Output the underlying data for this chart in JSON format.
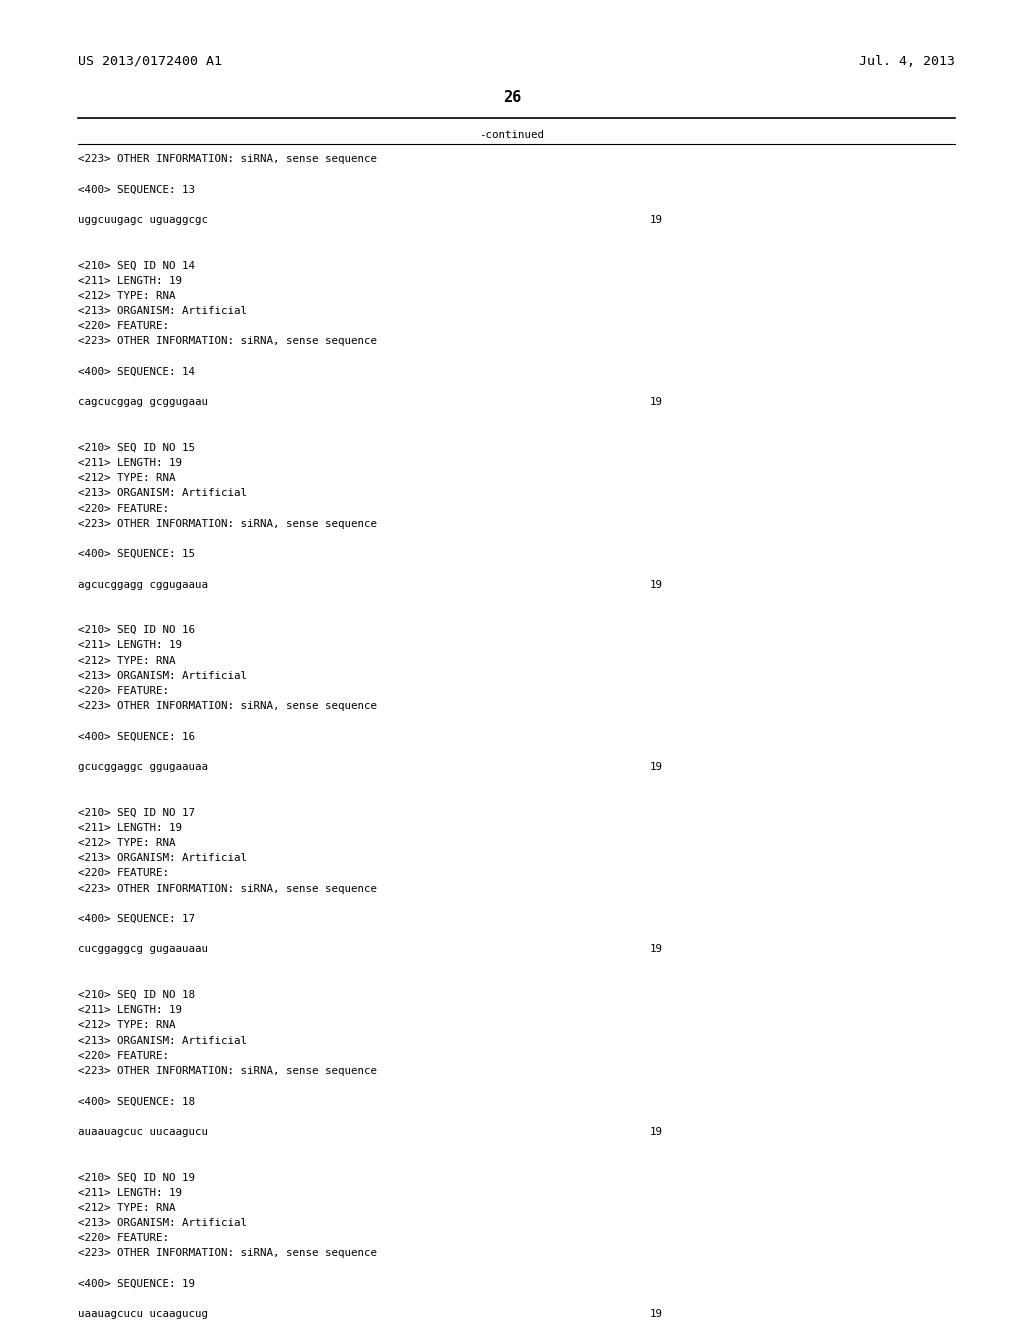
{
  "header_left": "US 2013/0172400 A1",
  "header_right": "Jul. 4, 2013",
  "page_number": "26",
  "continued_text": "-continued",
  "background_color": "#ffffff",
  "text_color": "#000000",
  "lines": [
    {
      "text": "<223> OTHER INFORMATION: siRNA, sense sequence",
      "num": null
    },
    {
      "text": "",
      "num": null
    },
    {
      "text": "<400> SEQUENCE: 13",
      "num": null
    },
    {
      "text": "",
      "num": null
    },
    {
      "text": "uggcuugagc uguaggcgc",
      "num": "19"
    },
    {
      "text": "",
      "num": null
    },
    {
      "text": "",
      "num": null
    },
    {
      "text": "<210> SEQ ID NO 14",
      "num": null
    },
    {
      "text": "<211> LENGTH: 19",
      "num": null
    },
    {
      "text": "<212> TYPE: RNA",
      "num": null
    },
    {
      "text": "<213> ORGANISM: Artificial",
      "num": null
    },
    {
      "text": "<220> FEATURE:",
      "num": null
    },
    {
      "text": "<223> OTHER INFORMATION: siRNA, sense sequence",
      "num": null
    },
    {
      "text": "",
      "num": null
    },
    {
      "text": "<400> SEQUENCE: 14",
      "num": null
    },
    {
      "text": "",
      "num": null
    },
    {
      "text": "cagcucggag gcggugaau",
      "num": "19"
    },
    {
      "text": "",
      "num": null
    },
    {
      "text": "",
      "num": null
    },
    {
      "text": "<210> SEQ ID NO 15",
      "num": null
    },
    {
      "text": "<211> LENGTH: 19",
      "num": null
    },
    {
      "text": "<212> TYPE: RNA",
      "num": null
    },
    {
      "text": "<213> ORGANISM: Artificial",
      "num": null
    },
    {
      "text": "<220> FEATURE:",
      "num": null
    },
    {
      "text": "<223> OTHER INFORMATION: siRNA, sense sequence",
      "num": null
    },
    {
      "text": "",
      "num": null
    },
    {
      "text": "<400> SEQUENCE: 15",
      "num": null
    },
    {
      "text": "",
      "num": null
    },
    {
      "text": "agcucggagg cggugaaua",
      "num": "19"
    },
    {
      "text": "",
      "num": null
    },
    {
      "text": "",
      "num": null
    },
    {
      "text": "<210> SEQ ID NO 16",
      "num": null
    },
    {
      "text": "<211> LENGTH: 19",
      "num": null
    },
    {
      "text": "<212> TYPE: RNA",
      "num": null
    },
    {
      "text": "<213> ORGANISM: Artificial",
      "num": null
    },
    {
      "text": "<220> FEATURE:",
      "num": null
    },
    {
      "text": "<223> OTHER INFORMATION: siRNA, sense sequence",
      "num": null
    },
    {
      "text": "",
      "num": null
    },
    {
      "text": "<400> SEQUENCE: 16",
      "num": null
    },
    {
      "text": "",
      "num": null
    },
    {
      "text": "gcucggaggc ggugaauaa",
      "num": "19"
    },
    {
      "text": "",
      "num": null
    },
    {
      "text": "",
      "num": null
    },
    {
      "text": "<210> SEQ ID NO 17",
      "num": null
    },
    {
      "text": "<211> LENGTH: 19",
      "num": null
    },
    {
      "text": "<212> TYPE: RNA",
      "num": null
    },
    {
      "text": "<213> ORGANISM: Artificial",
      "num": null
    },
    {
      "text": "<220> FEATURE:",
      "num": null
    },
    {
      "text": "<223> OTHER INFORMATION: siRNA, sense sequence",
      "num": null
    },
    {
      "text": "",
      "num": null
    },
    {
      "text": "<400> SEQUENCE: 17",
      "num": null
    },
    {
      "text": "",
      "num": null
    },
    {
      "text": "cucggaggcg gugaauaau",
      "num": "19"
    },
    {
      "text": "",
      "num": null
    },
    {
      "text": "",
      "num": null
    },
    {
      "text": "<210> SEQ ID NO 18",
      "num": null
    },
    {
      "text": "<211> LENGTH: 19",
      "num": null
    },
    {
      "text": "<212> TYPE: RNA",
      "num": null
    },
    {
      "text": "<213> ORGANISM: Artificial",
      "num": null
    },
    {
      "text": "<220> FEATURE:",
      "num": null
    },
    {
      "text": "<223> OTHER INFORMATION: siRNA, sense sequence",
      "num": null
    },
    {
      "text": "",
      "num": null
    },
    {
      "text": "<400> SEQUENCE: 18",
      "num": null
    },
    {
      "text": "",
      "num": null
    },
    {
      "text": "auaauagcuc uucaagucu",
      "num": "19"
    },
    {
      "text": "",
      "num": null
    },
    {
      "text": "",
      "num": null
    },
    {
      "text": "<210> SEQ ID NO 19",
      "num": null
    },
    {
      "text": "<211> LENGTH: 19",
      "num": null
    },
    {
      "text": "<212> TYPE: RNA",
      "num": null
    },
    {
      "text": "<213> ORGANISM: Artificial",
      "num": null
    },
    {
      "text": "<220> FEATURE:",
      "num": null
    },
    {
      "text": "<223> OTHER INFORMATION: siRNA, sense sequence",
      "num": null
    },
    {
      "text": "",
      "num": null
    },
    {
      "text": "<400> SEQUENCE: 19",
      "num": null
    },
    {
      "text": "",
      "num": null
    },
    {
      "text": "uaauagcucu ucaagucug",
      "num": "19"
    }
  ]
}
